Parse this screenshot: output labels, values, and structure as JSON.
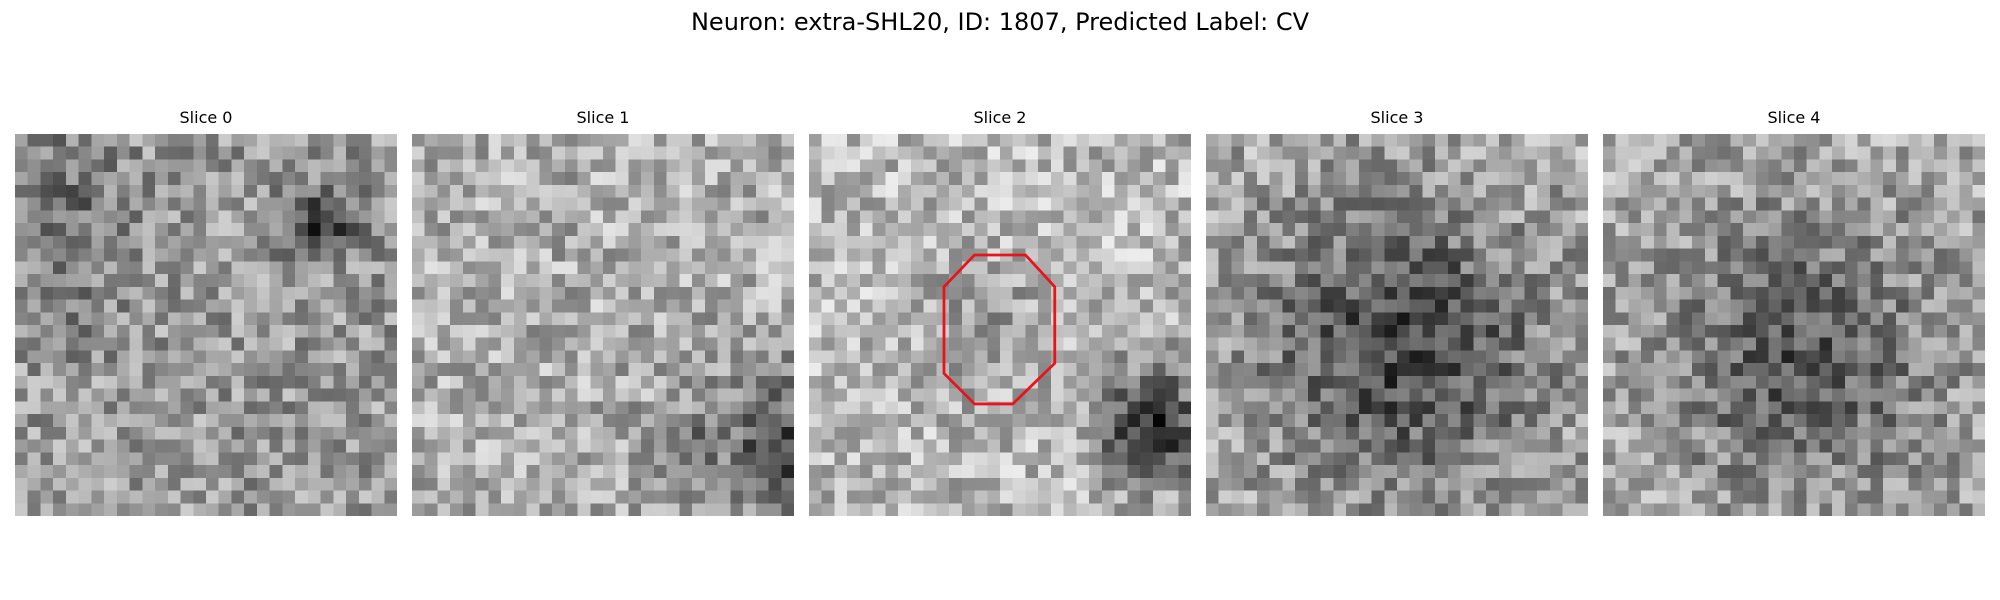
{
  "figure": {
    "title": "Neuron: extra-SHL20, ID: 1807, Predicted Label: CV"
  },
  "image": {
    "colormap": "gray",
    "grid": 30,
    "outline_color": "#e8141c"
  },
  "panels": [
    {
      "label": "Slice 0"
    },
    {
      "label": "Slice 1"
    },
    {
      "label": "Slice 2"
    },
    {
      "label": "Slice 3"
    },
    {
      "label": "Slice 4"
    }
  ]
}
